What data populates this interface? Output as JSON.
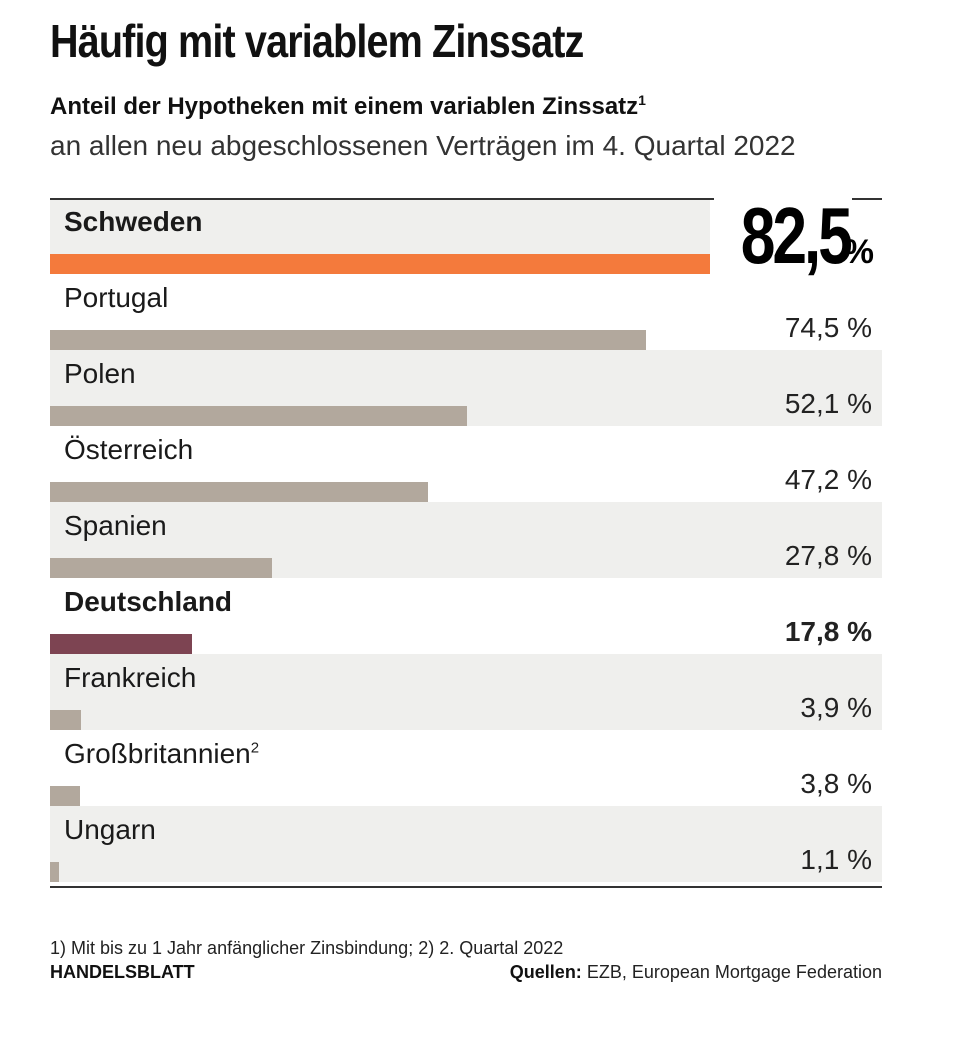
{
  "title": "Häufig mit variablem Zinssatz",
  "subtitle": "Anteil der Hypotheken mit einem variablen Zinssatz",
  "subtitle_sup": "1",
  "subtitle2": "an allen neu abgeschlossenen Verträgen im 4. Quartal 2022",
  "chart_data": {
    "type": "bar",
    "orientation": "horizontal",
    "unit": "%",
    "xlim": [
      0,
      82.5
    ],
    "categories": [
      "Schweden",
      "Portugal",
      "Polen",
      "Österreich",
      "Spanien",
      "Deutschland",
      "Frankreich",
      "Großbritannien",
      "Ungarn"
    ],
    "label_sups": [
      "",
      "",
      "",
      "",
      "",
      "",
      "",
      "2",
      ""
    ],
    "values": [
      82.5,
      74.5,
      52.1,
      47.2,
      27.8,
      17.8,
      3.9,
      3.8,
      1.1
    ],
    "value_labels": [
      "82,5",
      "74,5 %",
      "52,1 %",
      "47,2 %",
      "27,8 %",
      "17,8 %",
      "3,9 %",
      "3,8 %",
      "1,1 %"
    ],
    "big_unit": "%",
    "highlight": [
      "Schweden",
      "Deutschland"
    ],
    "colors": {
      "Schweden": "#f47a3c",
      "Deutschland": "#7d4452",
      "default": "#b2a89d",
      "row_shade": "#efefed"
    }
  },
  "footnote": "1) Mit bis zu 1 Jahr anfänglicher Zinsbindung; 2) 2. Quartal 2022",
  "brand": "HANDELSBLATT",
  "source_label": "Quellen:",
  "source_text": " EZB, European Mortgage Federation"
}
